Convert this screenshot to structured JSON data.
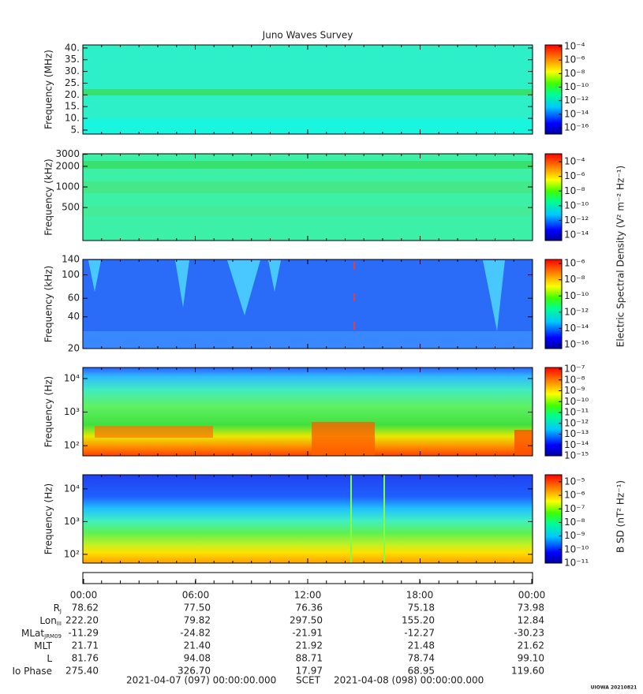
{
  "title": "Juno Waves Survey",
  "chart_data": [
    {
      "type": "spectrogram",
      "ylabel": "Frequency (MHz)",
      "yscale": "linear",
      "ylim": [
        3.3,
        41.3
      ],
      "yticks": [
        {
          "value": 40,
          "label": "40."
        },
        {
          "value": 35,
          "label": "35."
        },
        {
          "value": 30,
          "label": "30."
        },
        {
          "value": 25,
          "label": "25."
        },
        {
          "value": 20,
          "label": "20."
        },
        {
          "value": 15,
          "label": "15."
        },
        {
          "value": 10,
          "label": "10."
        },
        {
          "value": 5,
          "label": "5."
        }
      ],
      "colorbar": {
        "scale": "log",
        "clim": [
          1.15e-17,
          0.00017
        ],
        "ticks": [
          {
            "value": 0.0001,
            "label": "10⁻⁴"
          },
          {
            "value": 1e-06,
            "label": "10⁻⁶"
          },
          {
            "value": 1e-08,
            "label": "10⁻⁸"
          },
          {
            "value": 1e-10,
            "label": "10⁻¹⁰"
          },
          {
            "value": 1e-12,
            "label": "10⁻¹²"
          },
          {
            "value": 1e-14,
            "label": "10⁻¹⁴"
          },
          {
            "value": 1e-16,
            "label": "10⁻¹⁶"
          }
        ]
      }
    },
    {
      "type": "spectrogram",
      "ylabel": "Frequency (kHz)",
      "yscale": "log",
      "ylim": [
        165,
        3050
      ],
      "yticks": [
        500,
        1000,
        2000,
        3000
      ],
      "zlabel": "Electric Spectral Density (V² m⁻² Hz⁻¹)",
      "colorbar": {
        "scale": "log",
        "clim": [
          1.8e-15,
          0.0012
        ],
        "ticks": [
          {
            "value": 0.0001,
            "label": "10⁻⁴"
          },
          {
            "value": 1e-06,
            "label": "10⁻⁶"
          },
          {
            "value": 1e-08,
            "label": "10⁻⁸"
          },
          {
            "value": 1e-10,
            "label": "10⁻¹⁰"
          },
          {
            "value": 1e-12,
            "label": "10⁻¹²"
          },
          {
            "value": 1e-14,
            "label": "10⁻¹⁴"
          }
        ]
      }
    },
    {
      "type": "spectrogram",
      "ylabel": "Frequency (kHz)",
      "yscale": "log",
      "ylim": [
        20,
        140
      ],
      "yticks": [
        20,
        40,
        60,
        100,
        140
      ],
      "colorbar": {
        "scale": "log",
        "clim": [
          3.2e-17,
          3.2e-06
        ],
        "ticks": [
          {
            "value": 1e-06,
            "label": "10⁻⁶"
          },
          {
            "value": 1e-08,
            "label": "10⁻⁸"
          },
          {
            "value": 1e-10,
            "label": "10⁻¹⁰"
          },
          {
            "value": 1e-12,
            "label": "10⁻¹²"
          },
          {
            "value": 1e-14,
            "label": "10⁻¹⁴"
          },
          {
            "value": 1e-16,
            "label": "10⁻¹⁶"
          }
        ]
      }
    },
    {
      "type": "spectrogram",
      "ylabel": "Frequency (Hz)",
      "yscale": "log",
      "ylim": [
        50,
        21300
      ],
      "yticks": [
        {
          "value": 100,
          "label": "10²"
        },
        {
          "value": 1000,
          "label": "10³"
        },
        {
          "value": 10000,
          "label": "10⁴"
        }
      ],
      "colorbar": {
        "scale": "log",
        "clim": [
          1e-15,
          1.4e-07
        ],
        "ticks": [
          {
            "value": 1e-07,
            "label": "10⁻⁷"
          },
          {
            "value": 1e-08,
            "label": "10⁻⁸"
          },
          {
            "value": 1e-09,
            "label": "10⁻⁹"
          },
          {
            "value": 1e-10,
            "label": "10⁻¹⁰"
          },
          {
            "value": 1e-11,
            "label": "10⁻¹¹"
          },
          {
            "value": 1e-12,
            "label": "10⁻¹²"
          },
          {
            "value": 1e-13,
            "label": "10⁻¹³"
          },
          {
            "value": 1e-14,
            "label": "10⁻¹⁴"
          },
          {
            "value": 1e-15,
            "label": "10⁻¹⁵"
          }
        ]
      }
    },
    {
      "type": "spectrogram",
      "ylabel": "Frequency (Hz)",
      "yscale": "log",
      "ylim": [
        54,
        27000
      ],
      "yticks": [
        {
          "value": 100,
          "label": "10²"
        },
        {
          "value": 1000,
          "label": "10³"
        },
        {
          "value": 10000,
          "label": "10⁴"
        }
      ],
      "zlabel": "B SD (nT² Hz⁻¹)",
      "colorbar": {
        "scale": "log",
        "clim": [
          1e-11,
          3.3e-05
        ],
        "ticks": [
          {
            "value": 1e-05,
            "label": "10⁻⁵"
          },
          {
            "value": 1e-06,
            "label": "10⁻⁶"
          },
          {
            "value": 1e-07,
            "label": "10⁻⁷"
          },
          {
            "value": 1e-08,
            "label": "10⁻⁸"
          },
          {
            "value": 1e-09,
            "label": "10⁻⁹"
          },
          {
            "value": 1e-10,
            "label": "10⁻¹⁰"
          },
          {
            "value": 1e-11,
            "label": "10⁻¹¹"
          }
        ]
      }
    }
  ],
  "time_ticks": [
    "00:00",
    "06:00",
    "12:00",
    "18:00",
    "00:00"
  ],
  "ephemeris": [
    {
      "label": "R",
      "sub": "J",
      "values": [
        "78.62",
        "77.50",
        "76.36",
        "75.18",
        "73.98"
      ]
    },
    {
      "label": "Lon",
      "sub": "III",
      "values": [
        "222.20",
        "79.82",
        "297.50",
        "155.20",
        "12.84"
      ]
    },
    {
      "label": "MLat",
      "sub": "JRM09",
      "values": [
        "-11.29",
        "-24.82",
        "-21.91",
        "-12.27",
        "-30.23"
      ]
    },
    {
      "label": "MLT",
      "values": [
        "21.71",
        "21.40",
        "21.92",
        "21.48",
        "21.62"
      ]
    },
    {
      "label": "L",
      "values": [
        "81.76",
        "94.08",
        "88.71",
        "78.74",
        "99.10"
      ]
    },
    {
      "label": "Io Phase",
      "values": [
        "275.40",
        "326.70",
        "17.97",
        "68.95",
        "119.60"
      ]
    }
  ],
  "footer": [
    "2021-04-07 (097) 00:00:00.000",
    "SCET",
    "2021-04-08 (098) 00:00:00.000"
  ],
  "credit": "UIOWA 20210821"
}
